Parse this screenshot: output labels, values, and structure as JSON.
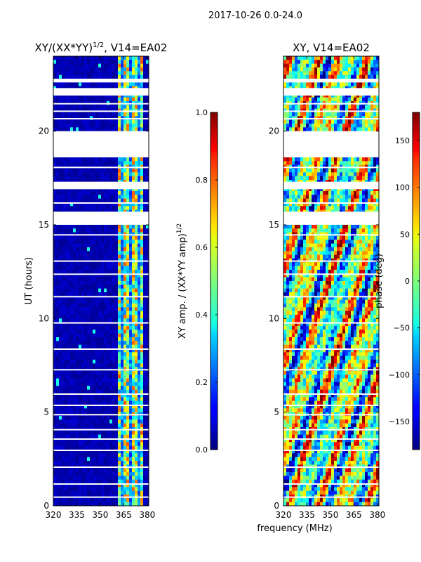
{
  "figure": {
    "suptitle": "2017-10-26 0.0-24.0",
    "xlabel": "frequency (MHz)"
  },
  "colors": {
    "stripe": "#ffffff",
    "frame": "#000000"
  },
  "chart_data": [
    {
      "type": "heatmap",
      "title_main": "XY/(XX*YY)",
      "title_sup": "1/2",
      "title_suffix": ", V14=EA02",
      "ylabel": "UT (hours)",
      "xlim": [
        320,
        381
      ],
      "ylim": [
        0,
        24
      ],
      "xticks": [
        320,
        335,
        350,
        365,
        380
      ],
      "yticks": [
        0,
        5,
        10,
        15,
        20
      ],
      "colormap": "jet",
      "colorbar": {
        "label_main": "XY amp. / (XX*YY amp)",
        "label_sup": "1/2",
        "range": [
          0.0,
          1.0
        ],
        "ticks": [
          "0.0",
          "0.2",
          "0.4",
          "0.6",
          "0.8",
          "1.0"
        ]
      },
      "bright_band_mhz": [
        361,
        378
      ],
      "blank_ut_intervals": [
        [
          18.6,
          20
        ],
        [
          15.0,
          15.7
        ],
        [
          16.9,
          17.3
        ],
        [
          21.9,
          22.3
        ],
        [
          22.6,
          22.8
        ]
      ]
    },
    {
      "type": "heatmap",
      "title_main": "XY",
      "title_sup": "",
      "title_suffix": ", V14=EA02",
      "ylabel": "",
      "xlim": [
        320,
        381
      ],
      "ylim": [
        0,
        24
      ],
      "xticks": [
        320,
        335,
        350,
        365,
        380
      ],
      "yticks": [
        0,
        5,
        10,
        15,
        20
      ],
      "colormap": "jet",
      "colorbar": {
        "label_main": "phase (deg)",
        "label_sup": "",
        "range": [
          -180,
          180
        ],
        "ticks": [
          "-150",
          "-100",
          "-50",
          "0",
          "50",
          "100",
          "150"
        ]
      },
      "blank_ut_intervals": [
        [
          18.6,
          20
        ],
        [
          15.0,
          15.7
        ],
        [
          16.9,
          17.3
        ],
        [
          21.9,
          22.3
        ],
        [
          22.6,
          22.8
        ]
      ]
    }
  ]
}
